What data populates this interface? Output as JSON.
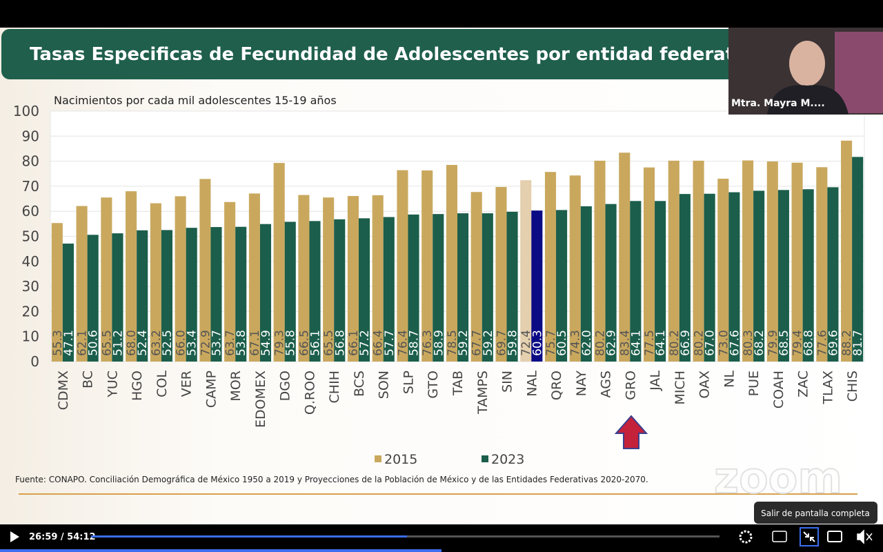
{
  "chart_data": {
    "type": "bar",
    "title": "Tasas Especificas de Fecundidad de Adolescentes por entidad federativa",
    "y_label": "Nacimientos por cada mil adolescentes 15-19 años",
    "source": "Fuente: CONAPO. Conciliación Demográfica de México 1950 a 2019 y Proyecciones de la Población de México y de las Entidades Federativas 2020-2070.",
    "categories": [
      "CDMX",
      "BC",
      "YUC",
      "HGO",
      "COL",
      "VER",
      "CAMP",
      "MOR",
      "EDOMEX",
      "DGO",
      "Q.ROO",
      "CHIH",
      "BCS",
      "SON",
      "SLP",
      "GTO",
      "TAB",
      "TAMPS",
      "SIN",
      "NAL",
      "QRO",
      "NAY",
      "AGS",
      "GRO",
      "JAL",
      "MICH",
      "OAX",
      "NL",
      "PUE",
      "COAH",
      "ZAC",
      "TLAX",
      "CHIS"
    ],
    "series": [
      {
        "name": "2015",
        "color": "#c9a85e",
        "highlight_color": "#e4cfae",
        "values": [
          55.3,
          62.1,
          65.5,
          68.0,
          63.2,
          66.0,
          72.9,
          63.7,
          67.1,
          79.3,
          66.5,
          65.5,
          66.1,
          66.4,
          76.4,
          76.3,
          78.5,
          67.7,
          69.7,
          72.4,
          75.7,
          74.3,
          80.2,
          83.4,
          77.5,
          80.2,
          80.2,
          73.0,
          80.3,
          79.9,
          79.4,
          77.6,
          88.2
        ],
        "value_labels": [
          "55.3",
          "62.1",
          "65.5",
          "68.0",
          "63.2",
          "66.0",
          "72.9",
          "63.7",
          "67.1",
          "79.3",
          "66.5",
          "65.5",
          "66.1",
          "66.4",
          "76.4",
          "76.3",
          "78.5",
          "67.7",
          "69.7",
          "72.4",
          "75.7",
          "74.3",
          "80.2",
          "83.4",
          "77.5",
          "80.2",
          "80.2",
          "73.0",
          "80.3",
          "79.9",
          "79.4",
          "77.6",
          "88.2"
        ]
      },
      {
        "name": "2023",
        "color": "#1b5e4b",
        "highlight_color": "#0b0b86",
        "values": [
          47.1,
          50.6,
          51.2,
          52.4,
          52.5,
          53.4,
          53.7,
          53.8,
          54.9,
          55.8,
          56.1,
          56.8,
          57.2,
          57.7,
          58.7,
          58.9,
          59.2,
          59.2,
          59.8,
          60.3,
          60.5,
          62.0,
          62.9,
          64.1,
          64.1,
          66.9,
          67.0,
          67.6,
          68.2,
          68.5,
          68.8,
          69.6,
          81.7
        ],
        "value_labels": [
          "47.1",
          "50.6",
          "51.2",
          "52.4",
          "52.5",
          "53.4",
          "53.7",
          "53.8",
          "54.9",
          "55.8",
          "56.1",
          "56.8",
          "57.2",
          "57.7",
          "58.7",
          "58.9",
          "59.2",
          "59.2",
          "59.8",
          "60.3",
          "60.5",
          "62.0",
          "62.9",
          "64.1",
          "64.1",
          "66.9",
          "67.0",
          "67.6",
          "68.2",
          "68.5",
          "68.8",
          "69.6",
          "81.7"
        ]
      }
    ],
    "highlight_index": 19,
    "ylim": [
      0,
      100
    ],
    "yticks": [
      0,
      10,
      20,
      30,
      40,
      50,
      60,
      70,
      80,
      90,
      100
    ],
    "grid": true
  },
  "participant": "Mtra. Mayra M....",
  "watermark": "zoom",
  "tooltip": "Salir de pantalla completa",
  "time": "26:59 / 54:12"
}
